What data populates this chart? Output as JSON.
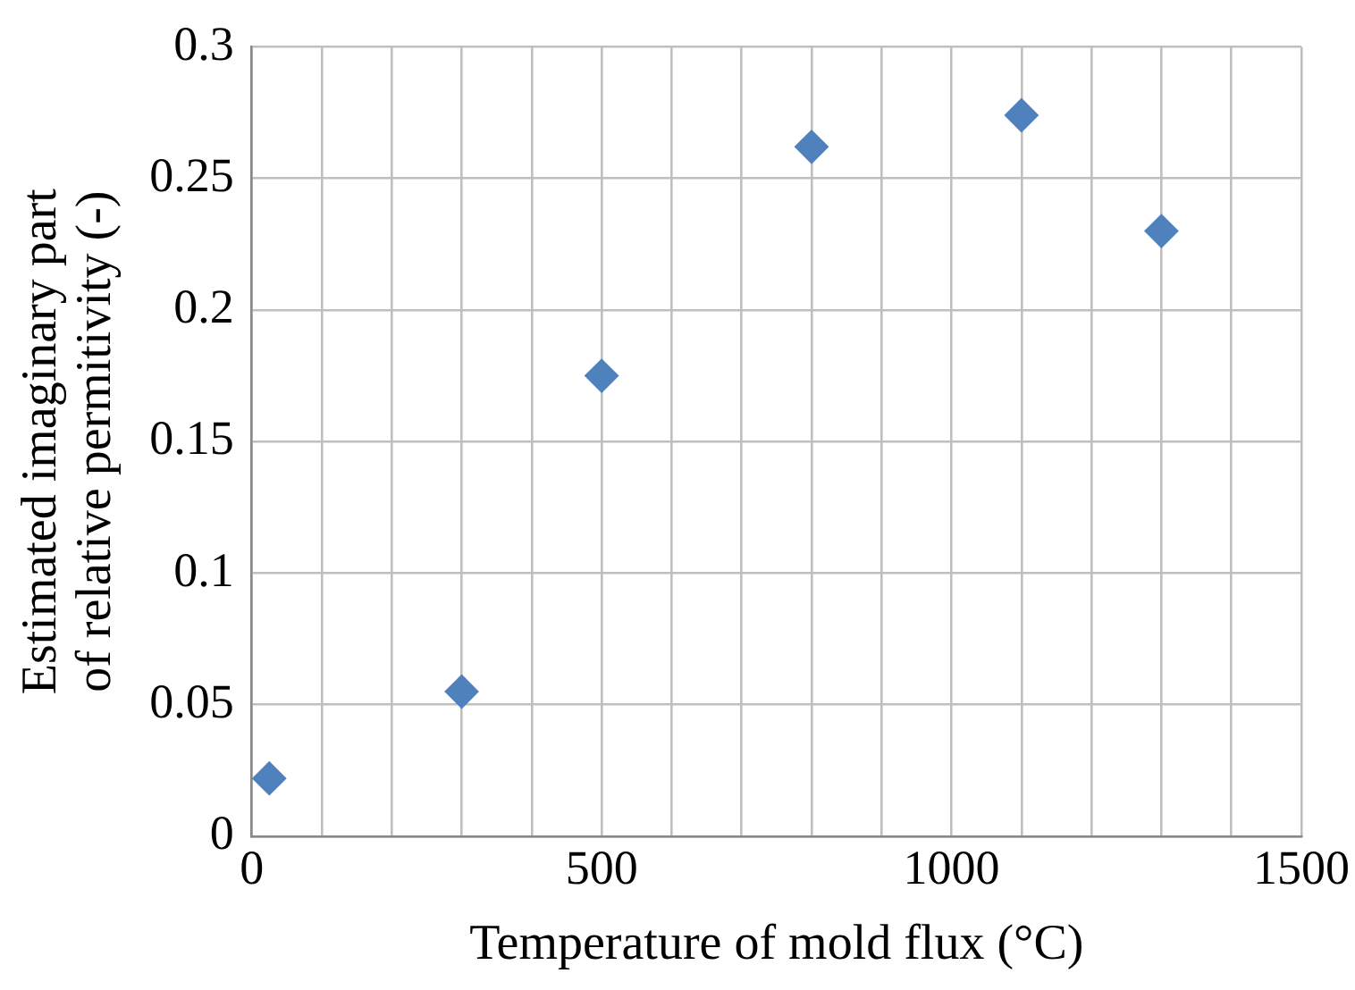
{
  "chart_data": {
    "type": "scatter",
    "xlabel": "Temperature of mold flux (°C)",
    "ylabel": "Estimated imaginary part\nof relative permitivity (-)",
    "x": [
      25,
      300,
      500,
      800,
      1100,
      1300
    ],
    "series": [
      {
        "color": "#4f81bd",
        "values": [
          0.022,
          0.055,
          0.175,
          0.262,
          0.274,
          0.23
        ]
      }
    ],
    "xlim": [
      0,
      1500
    ],
    "xticks": [
      0,
      {
        "value": 100,
        "label": null
      },
      {
        "value": 200,
        "label": null
      },
      {
        "value": 300,
        "label": null
      },
      {
        "value": 400,
        "label": null
      },
      500,
      {
        "value": 600,
        "label": null
      },
      {
        "value": 700,
        "label": null
      },
      {
        "value": 800,
        "label": null
      },
      {
        "value": 900,
        "label": null
      },
      1000,
      {
        "value": 1100,
        "label": null
      },
      {
        "value": 1200,
        "label": null
      },
      {
        "value": 1300,
        "label": null
      },
      {
        "value": 1400,
        "label": null
      },
      1500
    ],
    "ylim": [
      0,
      0.3
    ],
    "yticks": [
      0,
      0.05,
      0.1,
      0.15,
      0.2,
      0.25,
      0.3
    ],
    "grid": true,
    "legend": false,
    "marker": "diamond"
  }
}
